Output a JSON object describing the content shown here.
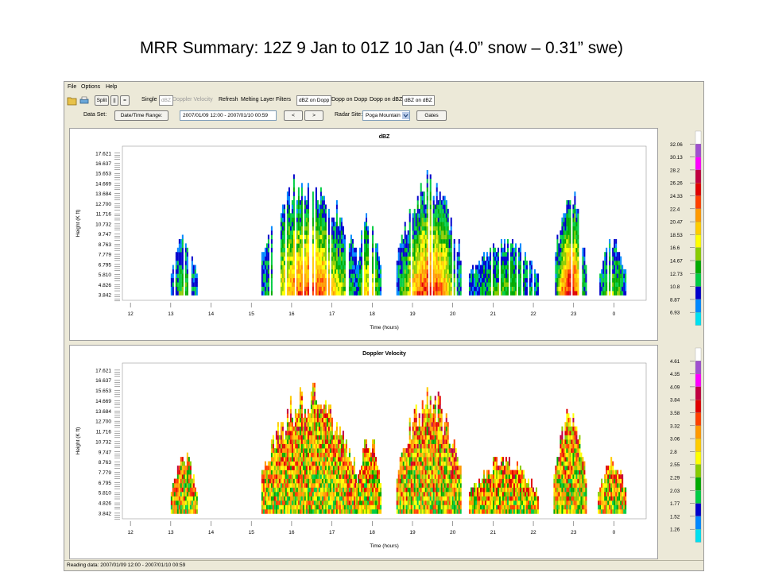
{
  "slide_title": "MRR Summary: 12Z 9 Jan to 01Z 10 Jan (4.0” snow – 0.31” swe)",
  "menu": [
    "File",
    "Options",
    "Help"
  ],
  "toolbar": {
    "open_icon": "folder-open-icon",
    "print_icon": "print-icon",
    "split_label": "Split",
    "pause_label": "||",
    "equal_label": "=",
    "single_label": "Single",
    "single_option_dbz": "dBZ",
    "single_option_velocity": "Doppler Velocity",
    "refresh_label": "Refresh",
    "melting_label": "Melting Layer",
    "filters_label": "Filters",
    "btn_dbz_on_dopp": "dBZ on Dopp",
    "btn_dopp_on_dopp": "Dopp on Dopp",
    "btn_dopp_on_dbz": "Dopp on dBZ",
    "btn_dbz_on_dbz": "dBZ on dBZ"
  },
  "dataset_bar": {
    "label": "Data Set:",
    "date_button": "Date/Time Range:",
    "range_value": "2007/01/09 12:00 - 2007/01/10 00:59",
    "prev_label": "<",
    "next_label": ">",
    "radar_label": "Radar Site:",
    "radar_value": "Poga Mountain",
    "gates_label": "Gates"
  },
  "status_text": "Reading data: 2007/01/09 12:00 - 2007/01/10 00:59",
  "chart_data": [
    {
      "type": "heatmap",
      "title": "dBZ",
      "xlabel": "Time (hours)",
      "ylabel": "Height (K ft)",
      "x_ticks": [
        "12",
        "13",
        "14",
        "15",
        "16",
        "17",
        "18",
        "19",
        "20",
        "21",
        "22",
        "23",
        "0"
      ],
      "y_ticks": [
        "17.621",
        "16.637",
        "15.653",
        "14.669",
        "13.684",
        "12.700",
        "11.716",
        "10.732",
        "9.747",
        "8.763",
        "7.779",
        "6.795",
        "5.810",
        "4.826",
        "3.842"
      ],
      "colorbar_labels": [
        "32.06",
        "30.13",
        "28.2",
        "26.26",
        "24.33",
        "22.4",
        "20.47",
        "18.53",
        "16.6",
        "14.67",
        "12.73",
        "10.8",
        "8.87",
        "6.93"
      ],
      "colorbar_colors": [
        "#ffffff",
        "#a050d0",
        "#ff00ff",
        "#c00040",
        "#e00000",
        "#ff4000",
        "#ff9900",
        "#ffcc00",
        "#ffff00",
        "#88cc00",
        "#00aa00",
        "#00cc44",
        "#0000cc",
        "#0088ff",
        "#00e0f0"
      ],
      "echoes": [
        {
          "name": "cell-13h",
          "t_start": 13.0,
          "t_end": 13.65,
          "top": 10.0,
          "intensity": 0.22
        },
        {
          "name": "band-16h",
          "t_start": 15.25,
          "t_end": 17.6,
          "top": 16.5,
          "intensity": 0.75
        },
        {
          "name": "band-17h",
          "t_start": 17.6,
          "t_end": 18.2,
          "top": 12.0,
          "intensity": 0.55
        },
        {
          "name": "band-19h",
          "t_start": 18.6,
          "t_end": 20.2,
          "top": 16.0,
          "intensity": 0.8
        },
        {
          "name": "scatter-21h",
          "t_start": 20.4,
          "t_end": 22.1,
          "top": 9.5,
          "intensity": 0.25
        },
        {
          "name": "band-23h",
          "t_start": 22.5,
          "t_end": 23.3,
          "top": 14.5,
          "intensity": 0.85
        },
        {
          "name": "scatter-0h",
          "t_start": 23.6,
          "t_end": 24.3,
          "top": 9.5,
          "intensity": 0.3
        }
      ]
    },
    {
      "type": "heatmap",
      "title": "Doppler Velocity",
      "xlabel": "Time (hours)",
      "ylabel": "Height (K ft)",
      "x_ticks": [
        "12",
        "13",
        "14",
        "15",
        "16",
        "17",
        "18",
        "19",
        "20",
        "21",
        "22",
        "23",
        "0"
      ],
      "y_ticks": [
        "17.621",
        "16.637",
        "15.653",
        "14.669",
        "13.684",
        "12.700",
        "11.716",
        "10.732",
        "9.747",
        "8.763",
        "7.779",
        "6.795",
        "5.810",
        "4.826",
        "3.842"
      ],
      "colorbar_labels": [
        "4.61",
        "4.35",
        "4.09",
        "3.84",
        "3.58",
        "3.32",
        "3.06",
        "2.8",
        "2.55",
        "2.29",
        "2.03",
        "1.77",
        "1.52",
        "1.26"
      ],
      "colorbar_colors": [
        "#ffffff",
        "#a050d0",
        "#ff00ff",
        "#c00040",
        "#e00000",
        "#ff4000",
        "#ff9900",
        "#ffcc00",
        "#ffff00",
        "#88cc00",
        "#00aa00",
        "#00cc44",
        "#0000cc",
        "#0088ff",
        "#00e0f0"
      ],
      "echoes": [
        {
          "name": "cell-13h",
          "t_start": 13.0,
          "t_end": 13.65,
          "top": 10.0,
          "intensity": 0.5
        },
        {
          "name": "band-16h",
          "t_start": 15.25,
          "t_end": 17.6,
          "top": 16.5,
          "intensity": 0.55
        },
        {
          "name": "band-17h",
          "t_start": 17.6,
          "t_end": 18.2,
          "top": 12.0,
          "intensity": 0.6
        },
        {
          "name": "band-19h",
          "t_start": 18.6,
          "t_end": 20.2,
          "top": 16.0,
          "intensity": 0.6
        },
        {
          "name": "scatter-21h",
          "t_start": 20.4,
          "t_end": 22.1,
          "top": 9.5,
          "intensity": 0.6
        },
        {
          "name": "band-23h",
          "t_start": 22.5,
          "t_end": 23.3,
          "top": 14.5,
          "intensity": 0.55
        },
        {
          "name": "scatter-0h",
          "t_start": 23.6,
          "t_end": 24.3,
          "top": 9.5,
          "intensity": 0.6
        }
      ]
    }
  ]
}
